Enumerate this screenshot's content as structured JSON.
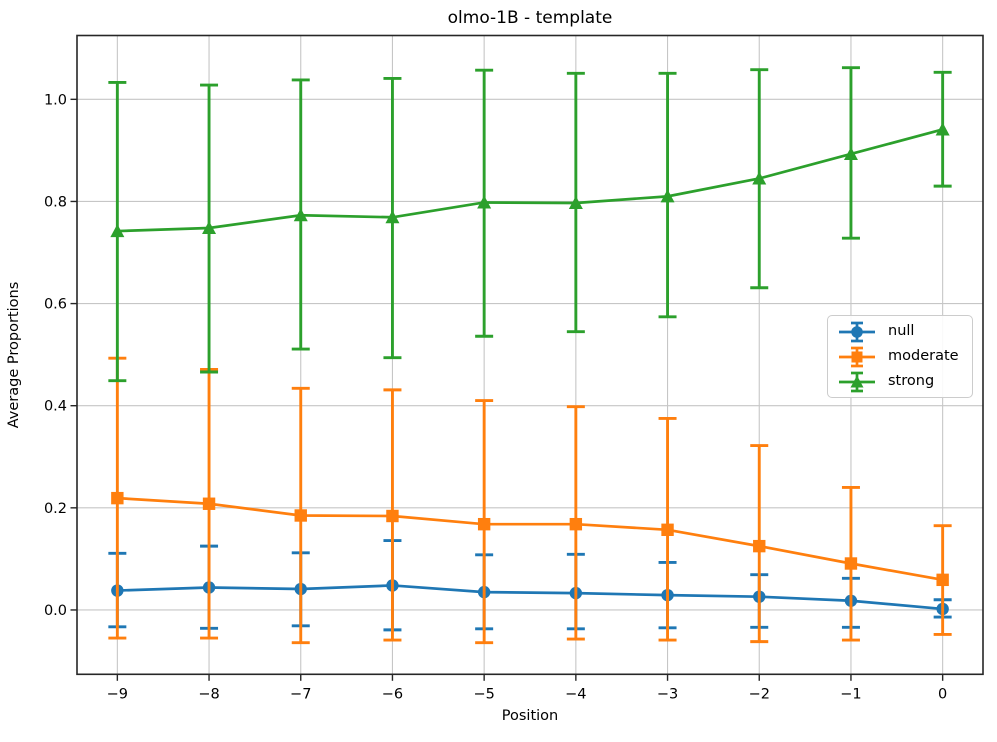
{
  "chart_data": {
    "type": "line",
    "title": "olmo-1B - template",
    "xlabel": "Position",
    "ylabel": "Average Proportions",
    "x": [
      -9,
      -8,
      -7,
      -6,
      -5,
      -4,
      -3,
      -2,
      -1,
      0
    ],
    "xtick_labels": [
      "−9",
      "−8",
      "−7",
      "−6",
      "−5",
      "−4",
      "−3",
      "−2",
      "−1",
      "0"
    ],
    "ytick_values": [
      0.0,
      0.2,
      0.4,
      0.6,
      0.8,
      1.0
    ],
    "ytick_labels": [
      "0.0",
      "0.2",
      "0.4",
      "0.6",
      "0.8",
      "1.0"
    ],
    "xlim": [
      -9.44,
      0.44
    ],
    "ylim": [
      -0.126,
      1.125
    ],
    "grid": true,
    "legend": {
      "position": "center-right",
      "entries": [
        "null",
        "moderate",
        "strong"
      ]
    },
    "series": [
      {
        "name": "null",
        "color": "#1f77b4",
        "marker": "circle",
        "values": [
          0.038,
          0.044,
          0.041,
          0.048,
          0.035,
          0.033,
          0.029,
          0.026,
          0.018,
          0.002
        ],
        "err_hi": [
          0.111,
          0.125,
          0.112,
          0.136,
          0.108,
          0.109,
          0.093,
          0.069,
          0.062,
          0.02
        ],
        "err_lo": [
          -0.033,
          -0.036,
          -0.031,
          -0.039,
          -0.037,
          -0.037,
          -0.035,
          -0.034,
          -0.034,
          -0.014
        ]
      },
      {
        "name": "moderate",
        "color": "#ff7f0e",
        "marker": "square",
        "values": [
          0.219,
          0.208,
          0.185,
          0.184,
          0.168,
          0.168,
          0.157,
          0.125,
          0.091,
          0.059
        ],
        "err_hi": [
          0.493,
          0.471,
          0.434,
          0.431,
          0.41,
          0.398,
          0.375,
          0.322,
          0.24,
          0.165
        ],
        "err_lo": [
          -0.055,
          -0.055,
          -0.064,
          -0.059,
          -0.064,
          -0.057,
          -0.059,
          -0.062,
          -0.059,
          -0.048
        ]
      },
      {
        "name": "strong",
        "color": "#2ca02c",
        "marker": "triangle",
        "values": [
          0.742,
          0.748,
          0.773,
          0.769,
          0.798,
          0.797,
          0.81,
          0.845,
          0.893,
          0.941
        ],
        "err_hi": [
          1.033,
          1.028,
          1.038,
          1.041,
          1.057,
          1.051,
          1.051,
          1.058,
          1.062,
          1.053
        ],
        "err_lo": [
          0.449,
          0.466,
          0.511,
          0.494,
          0.536,
          0.545,
          0.574,
          0.631,
          0.728,
          0.83
        ]
      }
    ]
  }
}
